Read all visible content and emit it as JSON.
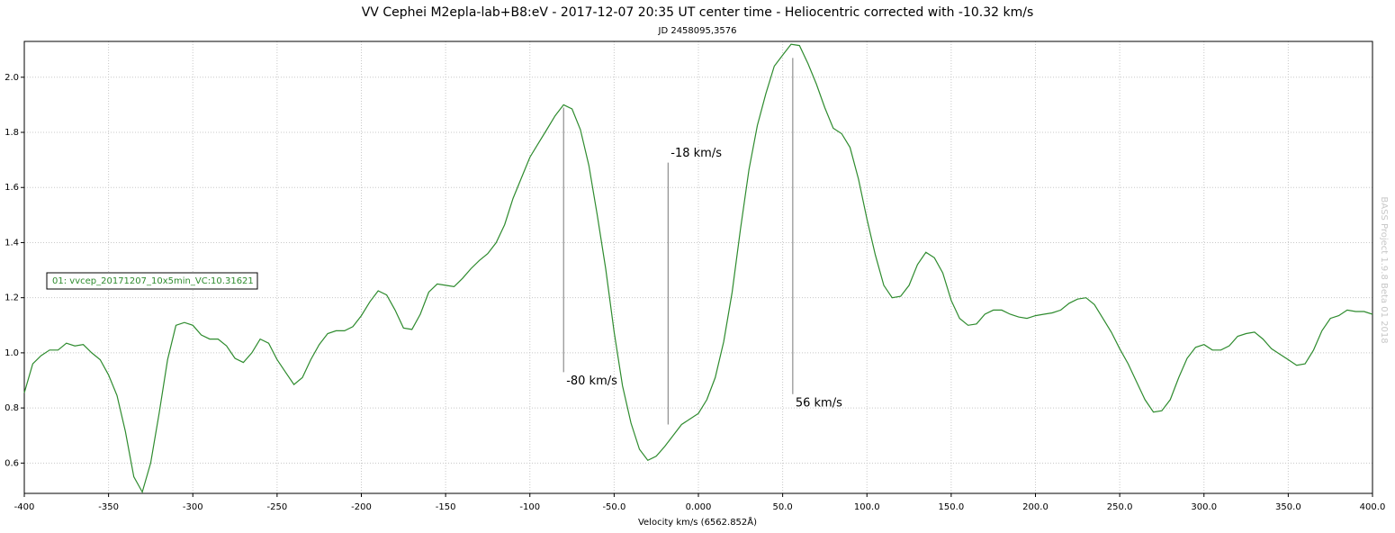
{
  "chart_data": {
    "type": "line",
    "title": "VV Cephei M2epla-lab+B8:eV - 2017-12-07 20:35 UT center time - Heliocentric corrected with -10.32 km/s",
    "subtitle": "JD 2458095,3576",
    "x_label": "Velocity km/s (6562.852Å)",
    "watermark": "BASS Project 1.9.8 Beta 01 2018",
    "xlim": [
      -400,
      400
    ],
    "ylim": [
      0.49,
      2.13
    ],
    "xticks": [
      -400,
      -350,
      -300,
      -250,
      -200,
      -150,
      -100,
      {
        "value": -50,
        "label": "-50.0"
      },
      {
        "value": 0,
        "label": "0.000"
      },
      {
        "value": 50,
        "label": "50.0"
      },
      {
        "value": 100,
        "label": "100.0"
      },
      {
        "value": 150,
        "label": "150.0"
      },
      {
        "value": 200,
        "label": "200.0"
      },
      {
        "value": 250,
        "label": "250.0"
      },
      {
        "value": 300,
        "label": "300.0"
      },
      {
        "value": 350,
        "label": "350.0"
      },
      {
        "value": 400,
        "label": "400.0"
      }
    ],
    "yticks": [
      0.6,
      0.8,
      {
        "value": 1,
        "label": "1.0"
      },
      1.2,
      1.4,
      1.6,
      1.8,
      {
        "value": 2,
        "label": "2.0"
      }
    ],
    "grid": true,
    "x": [
      -400,
      -395,
      -390,
      -385,
      -380,
      -375,
      -370,
      -365,
      -360,
      -355,
      -350,
      -345,
      -340,
      -335,
      -330,
      -325,
      -320,
      -315,
      -310,
      -305,
      -300,
      -295,
      -290,
      -285,
      -280,
      -275,
      -270,
      -265,
      -260,
      -255,
      -250,
      -245,
      -240,
      -235,
      -230,
      -225,
      -220,
      -215,
      -210,
      -205,
      -200,
      -195,
      -190,
      -185,
      -180,
      -175,
      -170,
      -165,
      -160,
      -155,
      -150,
      -145,
      -140,
      -135,
      -130,
      -125,
      -120,
      -115,
      -110,
      -105,
      -100,
      -95,
      -90,
      -85,
      -80,
      -75,
      -70,
      -65,
      -60,
      -55,
      -50,
      -45,
      -40,
      -35,
      -30,
      -25,
      -20,
      -15,
      -10,
      -5,
      0,
      5,
      10,
      15,
      20,
      25,
      30,
      35,
      40,
      45,
      50,
      55,
      60,
      65,
      70,
      75,
      80,
      85,
      90,
      95,
      100,
      105,
      110,
      115,
      120,
      125,
      130,
      135,
      140,
      145,
      150,
      155,
      160,
      165,
      170,
      175,
      180,
      185,
      190,
      195,
      200,
      205,
      210,
      215,
      220,
      225,
      230,
      235,
      240,
      245,
      250,
      255,
      260,
      265,
      270,
      275,
      280,
      285,
      290,
      295,
      300,
      305,
      310,
      315,
      320,
      325,
      330,
      335,
      340,
      345,
      350,
      355,
      360,
      365,
      370,
      375,
      380,
      385,
      390,
      395,
      400
    ],
    "series": [
      {
        "name": "01: vvcep_20171207_10x5min_VC:10.31621",
        "color": "#2e8b2e",
        "values": [
          0.855,
          0.96,
          0.99,
          1.01,
          1.01,
          1.035,
          1.025,
          1.03,
          1.0,
          0.975,
          0.92,
          0.845,
          0.715,
          0.55,
          0.495,
          0.6,
          0.78,
          0.975,
          1.1,
          1.11,
          1.1,
          1.065,
          1.05,
          1.05,
          1.025,
          0.98,
          0.965,
          1.0,
          1.05,
          1.035,
          0.975,
          0.93,
          0.885,
          0.91,
          0.975,
          1.03,
          1.07,
          1.08,
          1.08,
          1.095,
          1.135,
          1.185,
          1.225,
          1.21,
          1.155,
          1.09,
          1.085,
          1.14,
          1.22,
          1.25,
          1.245,
          1.24,
          1.27,
          1.305,
          1.335,
          1.36,
          1.4,
          1.465,
          1.56,
          1.635,
          1.71,
          1.76,
          1.81,
          1.86,
          1.9,
          1.885,
          1.81,
          1.68,
          1.5,
          1.305,
          1.075,
          0.88,
          0.745,
          0.65,
          0.61,
          0.625,
          0.66,
          0.7,
          0.74,
          0.76,
          0.78,
          0.83,
          0.91,
          1.04,
          1.22,
          1.45,
          1.665,
          1.825,
          1.94,
          2.04,
          2.08,
          2.12,
          2.115,
          2.05,
          1.975,
          1.89,
          1.815,
          1.795,
          1.745,
          1.63,
          1.485,
          1.355,
          1.245,
          1.2,
          1.205,
          1.245,
          1.32,
          1.365,
          1.345,
          1.29,
          1.19,
          1.125,
          1.1,
          1.105,
          1.14,
          1.155,
          1.155,
          1.14,
          1.13,
          1.125,
          1.135,
          1.14,
          1.145,
          1.155,
          1.18,
          1.195,
          1.2,
          1.175,
          1.125,
          1.075,
          1.015,
          0.96,
          0.895,
          0.83,
          0.785,
          0.79,
          0.83,
          0.91,
          0.98,
          1.02,
          1.03,
          1.01,
          1.01,
          1.025,
          1.06,
          1.07,
          1.075,
          1.05,
          1.015,
          0.995,
          0.975,
          0.955,
          0.96,
          1.01,
          1.08,
          1.125,
          1.135,
          1.155,
          1.15,
          1.15,
          1.14
        ]
      }
    ],
    "annotations": [
      {
        "text": "-80 km/s",
        "x": -80,
        "y": [
          0.93,
          1.89
        ]
      },
      {
        "text": "-18 km/s",
        "x": -18,
        "y": [
          0.74,
          1.69
        ]
      },
      {
        "text": "56 km/s",
        "x": 56,
        "y": [
          0.85,
          2.07
        ]
      }
    ]
  }
}
